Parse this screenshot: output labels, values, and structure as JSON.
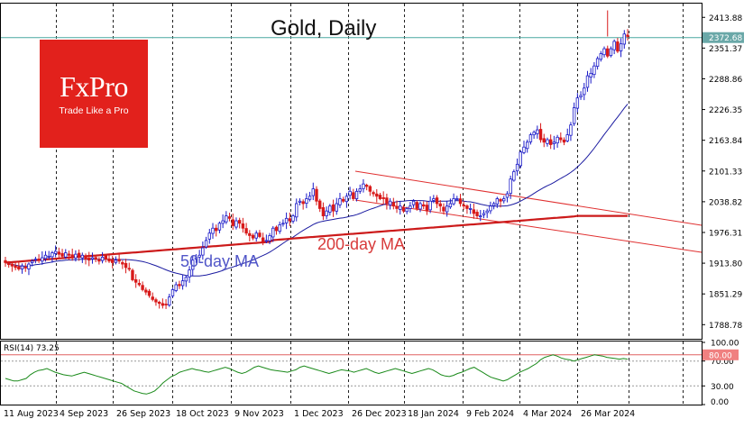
{
  "chart_data": [
    {
      "type": "candlestick",
      "title": "Gold, Daily",
      "symbol_logo": {
        "brand": "FxPro",
        "tagline": "Trade Like a Pro"
      },
      "y_ticks": [
        "2413.88",
        "2351.37",
        "2288.86",
        "2226.35",
        "2163.84",
        "2101.33",
        "2038.82",
        "1976.31",
        "1913.80",
        "1851.29",
        "1788.78"
      ],
      "ylim": [
        1760,
        2440
      ],
      "x_ticks": [
        "11 Aug 2023",
        "4 Sep 2023",
        "26 Sep 2023",
        "18 Oct 2023",
        "9 Nov 2023",
        "1 Dec 2023",
        "26 Dec 2023",
        "18 Jan 2024",
        "9 Feb 2024",
        "4 Mar 2024",
        "26 Mar 2024"
      ],
      "current_price": "2372.68",
      "series": [
        {
          "name": "50-day MA",
          "color": "#1a1aa0"
        },
        {
          "name": "200-day MA",
          "color": "#cc1a1a"
        }
      ],
      "annotations": [
        "50-day MA",
        "200-day MA"
      ],
      "channel": {
        "color": "#e03030",
        "description": "descending channel Dec 2023 - Mar 2024"
      },
      "candles_close": [
        1915,
        1912,
        1908,
        1905,
        1902,
        1908,
        1904,
        1912,
        1918,
        1922,
        1920,
        1925,
        1930,
        1928,
        1935,
        1938,
        1932,
        1928,
        1935,
        1930,
        1925,
        1932,
        1926,
        1930,
        1922,
        1920,
        1925,
        1922,
        1918,
        1926,
        1922,
        1918,
        1915,
        1920,
        1918,
        1912,
        1905,
        1902,
        1880,
        1875,
        1870,
        1860,
        1855,
        1848,
        1840,
        1835,
        1832,
        1828,
        1830,
        1845,
        1860,
        1870,
        1868,
        1878,
        1885,
        1900,
        1920,
        1925,
        1930,
        1945,
        1960,
        1975,
        1985,
        1980,
        1995,
        2000,
        2010,
        2005,
        1990,
        2000,
        1995,
        1985,
        1975,
        1970,
        1965,
        1975,
        1968,
        1958,
        1960,
        1970,
        1985,
        1980,
        1992,
        1995,
        2005,
        2000,
        2010,
        2035,
        2040,
        2035,
        2045,
        2050,
        2065,
        2040,
        2025,
        2010,
        2020,
        2030,
        2020,
        2035,
        2045,
        2040,
        2050,
        2060,
        2045,
        2060,
        2065,
        2075,
        2070,
        2060,
        2055,
        2050,
        2045,
        2045,
        2035,
        2040,
        2030,
        2025,
        2030,
        2020,
        2025,
        2030,
        2040,
        2025,
        2035,
        2030,
        2020,
        2040,
        2045,
        2035,
        2030,
        2020,
        2030,
        2035,
        2045,
        2045,
        2035,
        2030,
        2025,
        2025,
        2015,
        2010,
        2010,
        2015,
        2020,
        2030,
        2035,
        2045,
        2040,
        2045,
        2055,
        2085,
        2100,
        2115,
        2140,
        2150,
        2160,
        2175,
        2180,
        2185,
        2165,
        2160,
        2165,
        2155,
        2160,
        2170,
        2165,
        2160,
        2175,
        2195,
        2230,
        2250,
        2255,
        2270,
        2295,
        2300,
        2315,
        2330,
        2340,
        2350,
        2335,
        2350,
        2365,
        2345,
        2360,
        2380,
        2375
      ]
    },
    {
      "type": "line",
      "title": "RSI(14) 73.25",
      "y_ticks": [
        "100.00",
        "70.00",
        "30.00",
        "0.00"
      ],
      "ylim": [
        0,
        100
      ],
      "overbought_level": "80.00",
      "series": [
        {
          "name": "RSI(14)",
          "color": "#1a8a1a"
        }
      ],
      "values": [
        42,
        40,
        38,
        38,
        40,
        42,
        48,
        52,
        55,
        56,
        58,
        55,
        52,
        50,
        48,
        47,
        46,
        48,
        50,
        52,
        50,
        48,
        46,
        44,
        42,
        40,
        38,
        36,
        34,
        30,
        26,
        22,
        20,
        18,
        17,
        19,
        22,
        28,
        35,
        40,
        45,
        48,
        52,
        54,
        56,
        58,
        56,
        55,
        53,
        52,
        54,
        56,
        58,
        60,
        58,
        55,
        52,
        50,
        52,
        56,
        60,
        62,
        60,
        58,
        56,
        55,
        54,
        53,
        52,
        54,
        56,
        60,
        62,
        60,
        58,
        56,
        54,
        52,
        50,
        52,
        54,
        56,
        55,
        54,
        52,
        54,
        56,
        58,
        55,
        52,
        50,
        52,
        54,
        56,
        58,
        56,
        54,
        52,
        50,
        52,
        54,
        56,
        58,
        56,
        52,
        48,
        46,
        45,
        47,
        50,
        52,
        55,
        58,
        60,
        56,
        52,
        48,
        44,
        42,
        40,
        38,
        40,
        44,
        48,
        52,
        55,
        58,
        62,
        66,
        72,
        76,
        78,
        80,
        78,
        75,
        73,
        72,
        70,
        72,
        74,
        76,
        78,
        80,
        79,
        78,
        76,
        75,
        74,
        73,
        74,
        73
      ]
    }
  ]
}
